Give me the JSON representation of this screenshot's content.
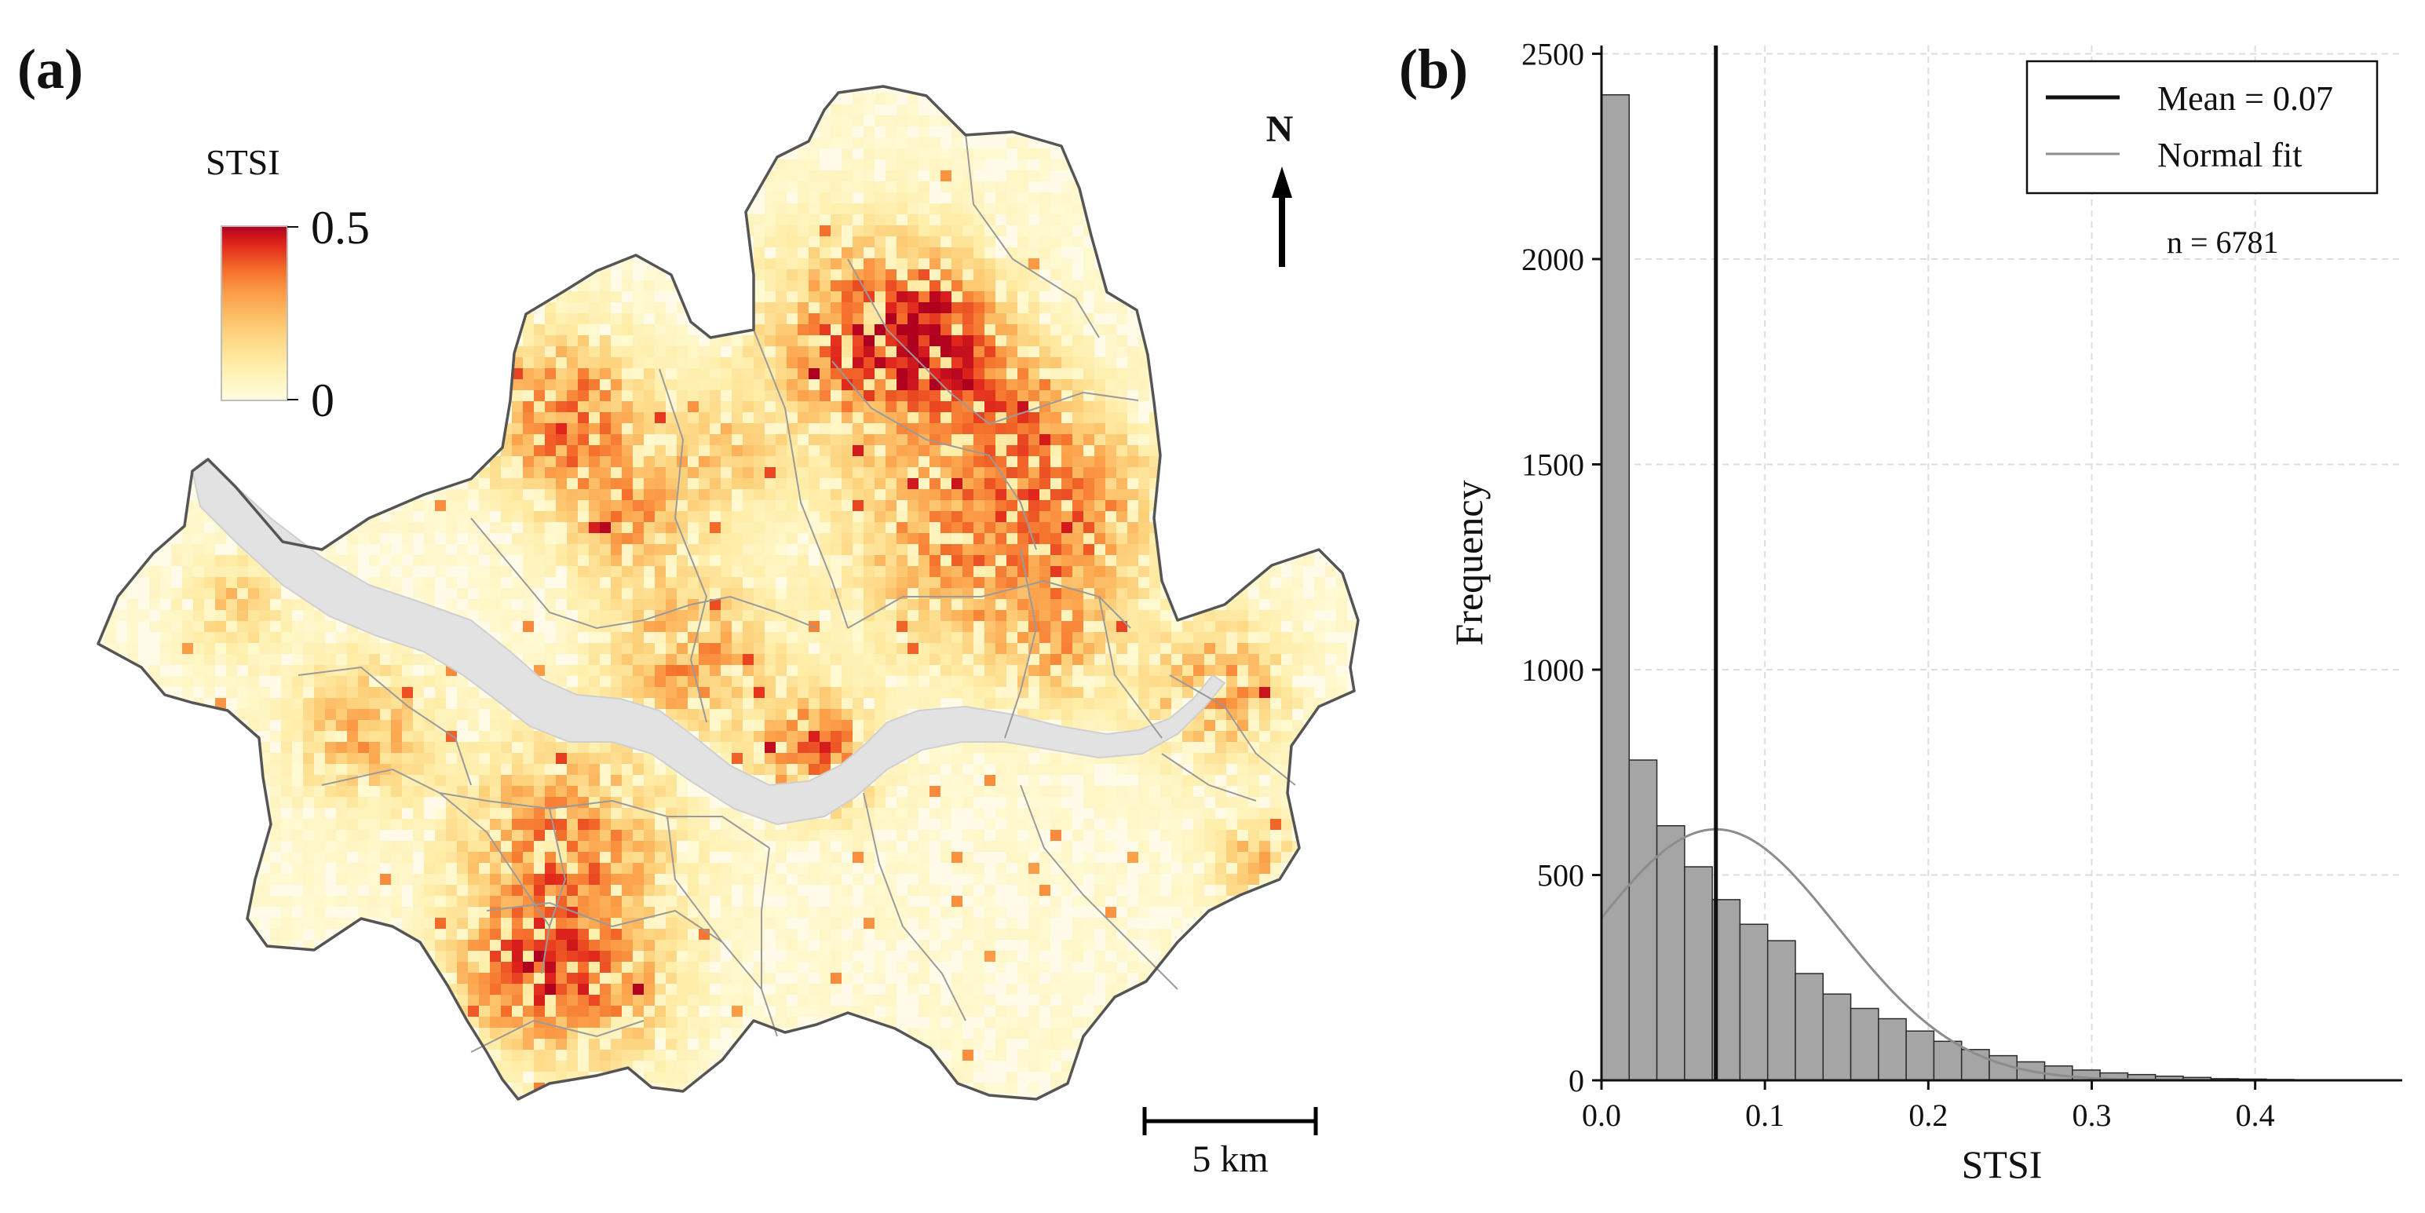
{
  "panels": {
    "a": "(a)",
    "b": "(b)"
  },
  "map": {
    "legend_title": "STSI",
    "legend_max_label": "0.5",
    "legend_min_label": "0",
    "legend_range": [
      0,
      0.5
    ],
    "colormap": [
      "#fffde0",
      "#ffeeaa",
      "#fdd07a",
      "#fca24b",
      "#f46d2a",
      "#e0251c",
      "#b00020"
    ],
    "river_color": "#e2e2e2",
    "boundary_color": "#555555",
    "district_line_color": "#9a9a9a",
    "north_label": "N",
    "scale_label": "5 km"
  },
  "chart_data": {
    "type": "bar",
    "subtype": "histogram",
    "bin_width": 0.01695,
    "bin_start": 0.0,
    "values": [
      2400,
      780,
      620,
      520,
      440,
      380,
      340,
      260,
      210,
      175,
      150,
      120,
      95,
      75,
      60,
      45,
      35,
      25,
      18,
      14,
      10,
      7,
      4,
      3,
      2,
      1,
      1,
      1,
      0
    ],
    "mean": 0.07,
    "std": 0.075,
    "n": 6781,
    "xlabel": "STSI",
    "ylabel": "Frequency",
    "xlim": [
      0.0,
      0.49
    ],
    "ylim": [
      0,
      2520
    ],
    "xticks": [
      0.0,
      0.1,
      0.2,
      0.3,
      0.4
    ],
    "xtick_labels": [
      "0.0",
      "0.1",
      "0.2",
      "0.3",
      "0.4"
    ],
    "yticks": [
      0,
      500,
      1000,
      1500,
      2000,
      2500
    ],
    "ytick_labels": [
      "0",
      "500",
      "1000",
      "1500",
      "2000",
      "2500"
    ],
    "grid": true,
    "legend_position": "top-right",
    "legend": [
      {
        "label": "Mean = 0.07",
        "color": "#111111",
        "style": "thick-line"
      },
      {
        "label": "Normal fit",
        "color": "#8c8c8c",
        "style": "thin-line"
      }
    ],
    "annotation": "n = 6781",
    "bar_color": "#a5a5a5",
    "bar_edge_color": "#2b2b2b"
  }
}
